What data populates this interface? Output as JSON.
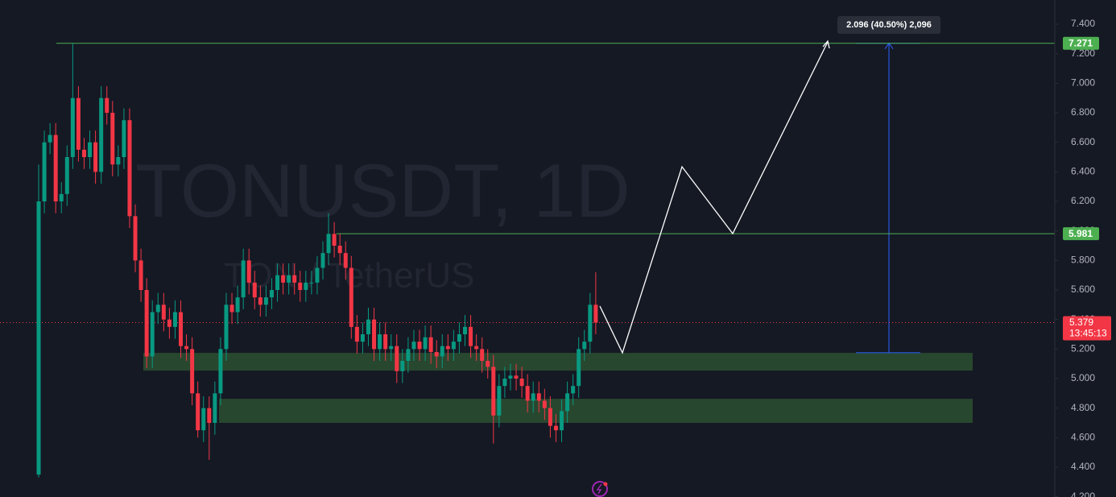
{
  "chart_data": {
    "type": "candlestick",
    "title": "TONUSDT, 1D",
    "subtitle": "TON / TetherUS",
    "up_color": "#089981",
    "down_color": "#f23645",
    "ylim": [
      4.198,
      7.564
    ],
    "yticks": [
      {
        "value": 7.4,
        "label": "7.400"
      },
      {
        "value": 7.2,
        "label": "7.200"
      },
      {
        "value": 7.0,
        "label": "7.000"
      },
      {
        "value": 6.8,
        "label": "6.800"
      },
      {
        "value": 6.6,
        "label": "6.600"
      },
      {
        "value": 6.4,
        "label": "6.400"
      },
      {
        "value": 6.2,
        "label": "6.200"
      },
      {
        "value": 6.0,
        "label": "6.000"
      },
      {
        "value": 5.8,
        "label": "5.800"
      },
      {
        "value": 5.6,
        "label": "5.600"
      },
      {
        "value": 5.4,
        "label": "5.400"
      },
      {
        "value": 5.2,
        "label": "5.200"
      },
      {
        "value": 5.0,
        "label": "5.000"
      },
      {
        "value": 4.8,
        "label": "4.800"
      },
      {
        "value": 4.6,
        "label": "4.600"
      },
      {
        "value": 4.4,
        "label": "4.400"
      },
      {
        "value": 4.2,
        "label": "4.200"
      }
    ],
    "open": [
      4.35,
      6.2,
      6.6,
      6.65,
      6.2,
      6.25,
      6.5,
      6.9,
      6.55,
      6.5,
      6.6,
      6.4,
      6.9,
      6.8,
      6.45,
      6.5,
      6.75,
      6.1,
      5.8,
      5.6,
      5.15,
      5.45,
      5.5,
      5.4,
      5.35,
      5.45,
      5.22,
      5.2,
      4.9,
      4.65,
      4.8,
      4.7,
      4.9,
      5.2,
      5.5,
      5.45,
      5.55,
      5.8,
      5.65,
      5.55,
      5.5,
      5.55,
      5.6,
      5.7,
      5.65,
      5.7,
      5.65,
      5.6,
      5.65,
      5.65,
      5.75,
      5.85,
      5.98,
      5.9,
      5.85,
      5.75,
      5.35,
      5.25,
      5.3,
      5.4,
      5.2,
      5.3,
      5.2,
      5.22,
      5.05,
      5.12,
      5.2,
      5.25,
      5.2,
      5.28,
      5.18,
      5.15,
      5.22,
      5.2,
      5.25,
      5.3,
      5.35,
      5.22,
      5.2,
      5.12,
      5.08,
      4.75,
      4.95,
      5.0,
      5.02,
      5.0,
      4.95,
      4.85,
      4.9,
      4.85,
      4.8,
      4.68,
      4.65,
      4.78,
      4.9,
      4.95,
      5.2,
      5.25,
      5.5
    ],
    "close": [
      6.2,
      6.6,
      6.65,
      6.2,
      6.25,
      6.5,
      6.9,
      6.55,
      6.5,
      6.6,
      6.4,
      6.9,
      6.8,
      6.45,
      6.5,
      6.75,
      6.1,
      5.8,
      5.6,
      5.15,
      5.45,
      5.5,
      5.4,
      5.35,
      5.45,
      5.22,
      5.2,
      4.9,
      4.65,
      4.8,
      4.7,
      4.9,
      5.2,
      5.5,
      5.45,
      5.55,
      5.8,
      5.65,
      5.55,
      5.5,
      5.55,
      5.6,
      5.7,
      5.65,
      5.7,
      5.65,
      5.6,
      5.65,
      5.65,
      5.75,
      5.85,
      5.98,
      5.9,
      5.85,
      5.75,
      5.35,
      5.25,
      5.3,
      5.4,
      5.2,
      5.3,
      5.2,
      5.22,
      5.05,
      5.12,
      5.2,
      5.25,
      5.2,
      5.28,
      5.18,
      5.15,
      5.22,
      5.2,
      5.25,
      5.3,
      5.35,
      5.22,
      5.2,
      5.12,
      5.08,
      4.75,
      4.95,
      5.0,
      5.02,
      5.0,
      4.95,
      4.85,
      4.9,
      4.85,
      4.8,
      4.68,
      4.65,
      4.78,
      4.9,
      4.95,
      5.2,
      5.25,
      5.5,
      5.379
    ],
    "high": [
      6.45,
      6.68,
      6.73,
      6.73,
      6.33,
      6.58,
      7.271,
      6.98,
      6.63,
      6.68,
      6.68,
      6.98,
      6.98,
      6.88,
      6.58,
      6.83,
      6.83,
      6.18,
      5.88,
      5.68,
      5.53,
      5.58,
      5.58,
      5.48,
      5.53,
      5.53,
      5.3,
      5.28,
      4.98,
      4.88,
      4.88,
      4.98,
      5.28,
      5.58,
      5.58,
      5.63,
      5.88,
      5.88,
      5.73,
      5.63,
      5.63,
      5.68,
      5.78,
      5.78,
      5.78,
      5.78,
      5.73,
      5.73,
      5.73,
      5.83,
      5.93,
      6.12,
      6.06,
      5.98,
      5.93,
      5.83,
      5.43,
      5.38,
      5.48,
      5.48,
      5.38,
      5.38,
      5.3,
      5.3,
      5.2,
      5.28,
      5.33,
      5.33,
      5.36,
      5.36,
      5.26,
      5.3,
      5.3,
      5.33,
      5.38,
      5.43,
      5.43,
      5.3,
      5.28,
      5.2,
      5.16,
      5.03,
      5.08,
      5.1,
      5.1,
      5.08,
      5.03,
      4.98,
      4.98,
      4.93,
      4.88,
      4.76,
      4.86,
      4.98,
      5.03,
      5.28,
      5.33,
      5.58,
      5.72
    ],
    "low": [
      4.33,
      6.12,
      6.52,
      6.12,
      6.12,
      6.17,
      6.42,
      6.47,
      6.42,
      6.42,
      6.32,
      6.32,
      6.72,
      6.37,
      6.37,
      6.42,
      6.02,
      5.72,
      5.52,
      5.07,
      5.07,
      5.37,
      5.32,
      5.27,
      5.27,
      5.14,
      5.12,
      4.82,
      4.6,
      4.57,
      4.45,
      4.62,
      4.82,
      5.12,
      5.37,
      5.37,
      5.47,
      5.57,
      5.47,
      5.42,
      5.42,
      5.47,
      5.52,
      5.57,
      5.57,
      5.57,
      5.52,
      5.52,
      5.57,
      5.57,
      5.67,
      5.77,
      5.82,
      5.77,
      5.67,
      5.27,
      5.17,
      5.17,
      5.22,
      5.12,
      5.12,
      5.12,
      5.12,
      4.97,
      4.97,
      5.04,
      5.12,
      5.12,
      5.12,
      5.1,
      5.07,
      5.07,
      5.12,
      5.12,
      5.17,
      5.22,
      5.14,
      5.12,
      5.04,
      5.0,
      4.56,
      4.67,
      4.87,
      4.92,
      4.92,
      4.87,
      4.77,
      4.77,
      4.77,
      4.72,
      4.6,
      4.57,
      4.57,
      4.7,
      4.82,
      4.87,
      5.12,
      5.17,
      5.3
    ],
    "price_lines": [
      7.271,
      5.981
    ],
    "price_line_color": "#4caf50",
    "zones": [
      [
        5.054,
        5.174
      ],
      [
        4.7,
        4.863
      ]
    ],
    "zone_color": "#28472f",
    "last_price": 5.379,
    "countdown": "13:45:13",
    "measure": {
      "from": 5.175,
      "to": 7.271,
      "label": "2.096 (40.50%) 2,096",
      "color": "#2962ff"
    }
  }
}
